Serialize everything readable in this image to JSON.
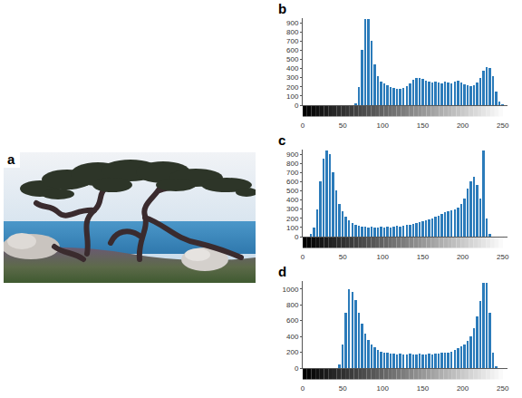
{
  "chart_data": [
    {
      "type": "image",
      "title": "a"
    },
    {
      "type": "histogram",
      "title": "b",
      "color": "#2b7bba",
      "bins": [
        0,
        4,
        8,
        12,
        16,
        20,
        24,
        28,
        32,
        36,
        40,
        44,
        48,
        52,
        56,
        60,
        64,
        68,
        72,
        76,
        80,
        84,
        88,
        92,
        96,
        100,
        104,
        108,
        112,
        116,
        120,
        124,
        128,
        132,
        136,
        140,
        144,
        148,
        152,
        156,
        160,
        164,
        168,
        172,
        176,
        180,
        184,
        188,
        192,
        196,
        200,
        204,
        208,
        212,
        216,
        220,
        224,
        228,
        232,
        236,
        240,
        244,
        248,
        252,
        256
      ],
      "counts": [
        0,
        0,
        0,
        0,
        0,
        0,
        0,
        0,
        0,
        0,
        0,
        0,
        0,
        0,
        0,
        0,
        20,
        200,
        600,
        940,
        940,
        700,
        450,
        320,
        260,
        240,
        220,
        200,
        190,
        180,
        180,
        190,
        210,
        240,
        280,
        300,
        300,
        290,
        270,
        260,
        250,
        260,
        250,
        240,
        260,
        250,
        240,
        260,
        270,
        250,
        230,
        220,
        210,
        220,
        250,
        300,
        380,
        420,
        410,
        320,
        150,
        40,
        10,
        0
      ],
      "xlim": [
        0,
        256
      ],
      "xticks": [
        0,
        50,
        100,
        150,
        200,
        250
      ],
      "ylim": [
        0,
        950
      ],
      "yticks": [
        0,
        100,
        200,
        300,
        400,
        500,
        600,
        700,
        800,
        900
      ]
    },
    {
      "type": "histogram",
      "title": "c",
      "color": "#2b7bba",
      "bins": [
        0,
        4,
        8,
        12,
        16,
        20,
        24,
        28,
        32,
        36,
        40,
        44,
        48,
        52,
        56,
        60,
        64,
        68,
        72,
        76,
        80,
        84,
        88,
        92,
        96,
        100,
        104,
        108,
        112,
        116,
        120,
        124,
        128,
        132,
        136,
        140,
        144,
        148,
        152,
        156,
        160,
        164,
        168,
        172,
        176,
        180,
        184,
        188,
        192,
        196,
        200,
        204,
        208,
        212,
        216,
        220,
        224,
        228,
        232,
        236,
        240,
        244,
        248,
        252,
        256
      ],
      "counts": [
        0,
        0,
        30,
        100,
        300,
        600,
        850,
        940,
        900,
        700,
        500,
        360,
        280,
        220,
        180,
        150,
        130,
        120,
        110,
        110,
        100,
        110,
        100,
        100,
        110,
        100,
        110,
        100,
        110,
        120,
        110,
        120,
        130,
        130,
        140,
        150,
        160,
        170,
        180,
        190,
        200,
        220,
        230,
        250,
        270,
        280,
        290,
        300,
        320,
        360,
        420,
        520,
        600,
        650,
        560,
        420,
        940,
        200,
        30,
        0,
        0,
        0,
        0,
        0
      ],
      "xlim": [
        0,
        256
      ],
      "xticks": [
        0,
        50,
        100,
        150,
        200,
        250
      ],
      "ylim": [
        0,
        950
      ],
      "yticks": [
        0,
        100,
        200,
        300,
        400,
        500,
        600,
        700,
        800,
        900
      ]
    },
    {
      "type": "histogram",
      "title": "d",
      "color": "#2b7bba",
      "bins": [
        0,
        4,
        8,
        12,
        16,
        20,
        24,
        28,
        32,
        36,
        40,
        44,
        48,
        52,
        56,
        60,
        64,
        68,
        72,
        76,
        80,
        84,
        88,
        92,
        96,
        100,
        104,
        108,
        112,
        116,
        120,
        124,
        128,
        132,
        136,
        140,
        144,
        148,
        152,
        156,
        160,
        164,
        168,
        172,
        176,
        180,
        184,
        188,
        192,
        196,
        200,
        204,
        208,
        212,
        216,
        220,
        224,
        228,
        232,
        236,
        240,
        244,
        248,
        252,
        256
      ],
      "counts": [
        0,
        0,
        0,
        0,
        0,
        0,
        0,
        0,
        0,
        0,
        0,
        50,
        300,
        700,
        1000,
        960,
        860,
        700,
        560,
        440,
        360,
        300,
        260,
        230,
        210,
        200,
        190,
        180,
        180,
        170,
        180,
        170,
        170,
        180,
        170,
        170,
        180,
        170,
        170,
        180,
        170,
        180,
        180,
        190,
        190,
        200,
        210,
        230,
        250,
        270,
        300,
        340,
        400,
        500,
        650,
        850,
        1080,
        1080,
        700,
        200,
        20,
        0,
        0,
        0
      ],
      "xlim": [
        0,
        256
      ],
      "xticks": [
        0,
        50,
        100,
        150,
        200,
        250
      ],
      "ylim": [
        0,
        1100
      ],
      "yticks": [
        0,
        200,
        400,
        600,
        800,
        1000
      ]
    }
  ]
}
